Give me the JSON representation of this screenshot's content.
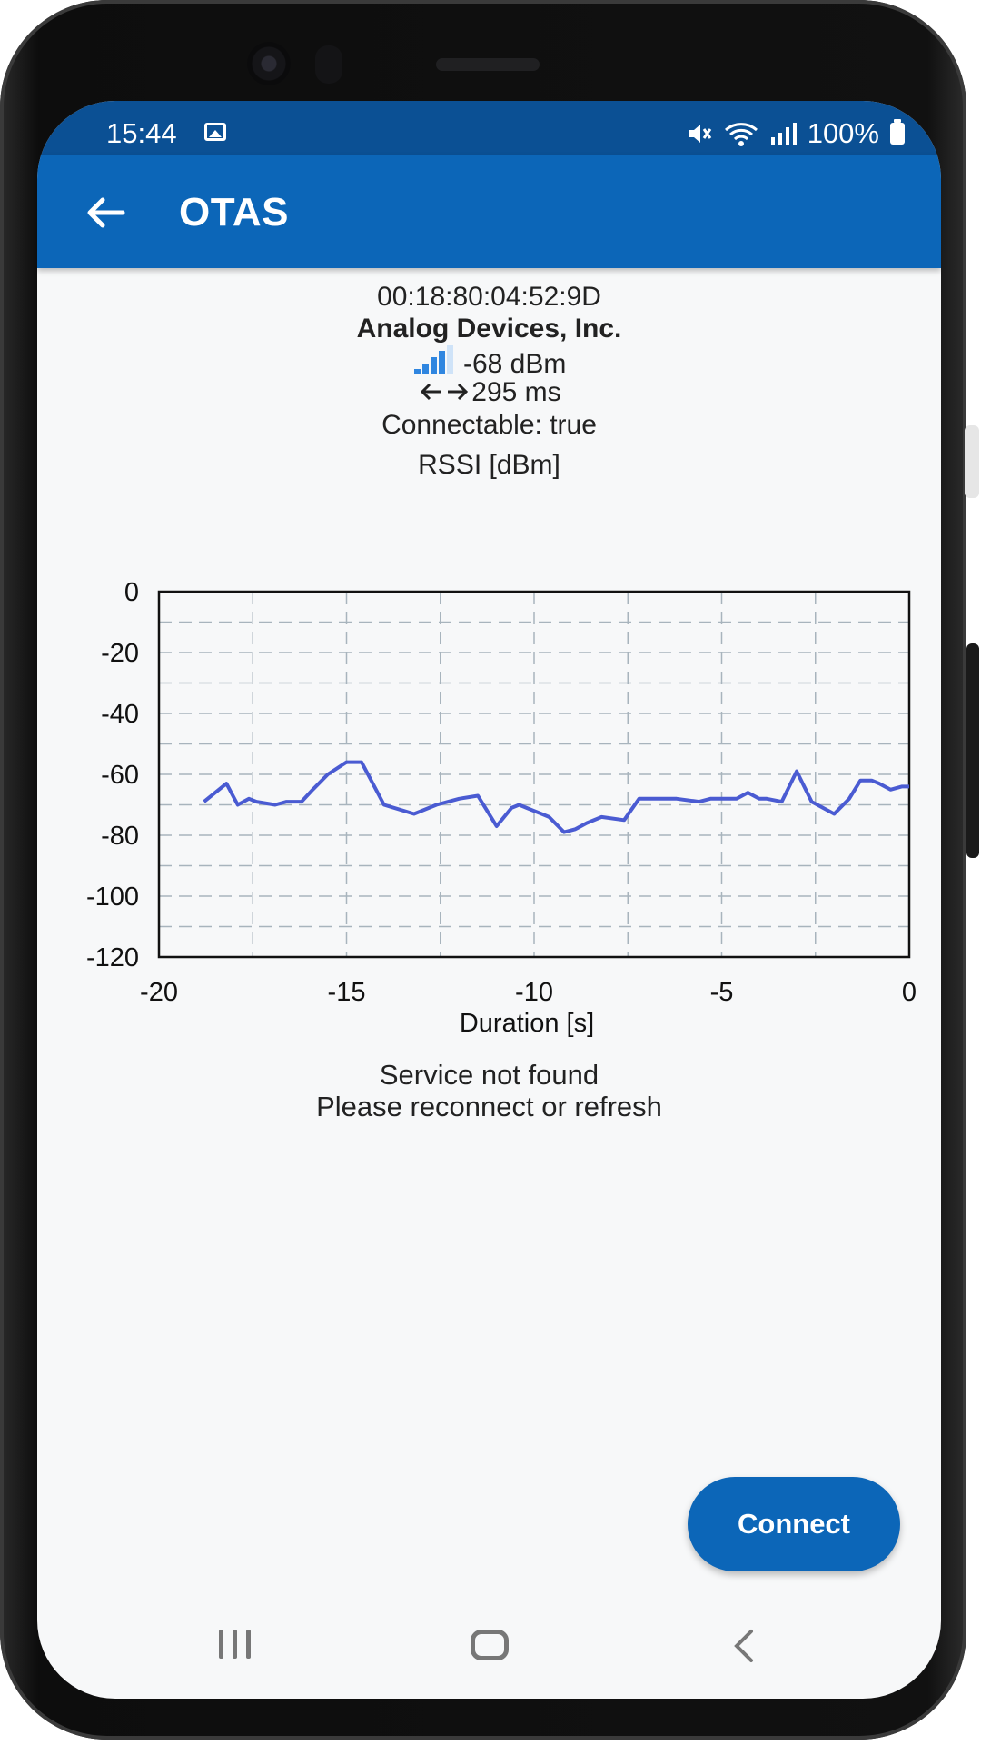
{
  "status_bar": {
    "time": "15:44",
    "battery": "100%",
    "icons": [
      "image-icon",
      "mute-icon",
      "wifi-icon",
      "signal-icon",
      "battery-icon"
    ]
  },
  "app_bar": {
    "title": "OTAS",
    "back_icon": "arrow-left-icon"
  },
  "device": {
    "address": "00:18:80:04:52:9D",
    "name": "Analog Devices, Inc.",
    "rssi": "-68 dBm",
    "interval": "295 ms",
    "connectable": "Connectable: true"
  },
  "chart_data": {
    "type": "line",
    "title": "RSSI [dBm]",
    "xlabel": "Duration [s]",
    "ylabel": "",
    "xlim": [
      -20,
      0
    ],
    "ylim": [
      -120,
      0
    ],
    "x_ticks": [
      "-20",
      "-15",
      "-10",
      "-5",
      "0"
    ],
    "y_ticks": [
      "0",
      "-20",
      "-40",
      "-60",
      "-80",
      "-100",
      "-120"
    ],
    "grid": true,
    "series": [
      {
        "color": "#4a5bd2",
        "x": [
          -18.8,
          -18.2,
          -17.9,
          -17.6,
          -17.4,
          -16.9,
          -16.6,
          -16.2,
          -15.9,
          -15.5,
          -15.0,
          -14.6,
          -14.0,
          -13.2,
          -12.6,
          -12.0,
          -11.5,
          -11.0,
          -10.6,
          -10.4,
          -10.2,
          -9.8,
          -9.6,
          -9.2,
          -8.9,
          -8.6,
          -8.2,
          -7.6,
          -7.2,
          -6.8,
          -6.2,
          -5.6,
          -5.3,
          -5.0,
          -4.6,
          -4.3,
          -4.0,
          -3.8,
          -3.4,
          -3.0,
          -2.6,
          -2.0,
          -1.6,
          -1.3,
          -1.0,
          -0.8,
          -0.5,
          -0.2,
          0.0
        ],
        "y": [
          -69,
          -63,
          -70,
          -68,
          -69,
          -70,
          -69,
          -69,
          -65,
          -60,
          -56,
          -56,
          -70,
          -73,
          -70,
          -68,
          -67,
          -77,
          -71,
          -70,
          -71,
          -73,
          -74,
          -79,
          -78,
          -76,
          -74,
          -75,
          -68,
          -68,
          -68,
          -69,
          -68,
          -68,
          -68,
          -66,
          -68,
          -68,
          -69,
          -59,
          -69,
          -73,
          -68,
          -62,
          -62,
          -63,
          -65,
          -64,
          -64
        ]
      }
    ]
  },
  "messages": {
    "line1": "Service not found",
    "line2": "Please reconnect or refresh"
  },
  "actions": {
    "connect_label": "Connect"
  },
  "colors": {
    "app_bar": "#0c66b8",
    "status_bar": "#0b5094",
    "line": "#4a5bd2"
  }
}
